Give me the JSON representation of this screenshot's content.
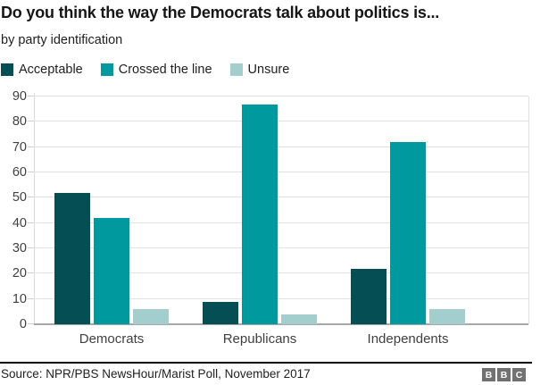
{
  "header": {
    "title": "Do you think the way the Democrats talk about politics is...",
    "subtitle": "by party identification"
  },
  "chart_data": {
    "type": "bar",
    "title": "Do you think the way the Democrats talk about politics is...",
    "subtitle": "by party identification",
    "categories": [
      "Democrats",
      "Republicans",
      "Independents"
    ],
    "series": [
      {
        "name": "Acceptable",
        "color": "#054e53",
        "values": [
          52,
          9,
          22
        ]
      },
      {
        "name": "Crossed the line",
        "color": "#00999e",
        "values": [
          42,
          87,
          72
        ]
      },
      {
        "name": "Unsure",
        "color": "#a4cecd",
        "values": [
          6,
          4,
          6
        ]
      }
    ],
    "ylim": [
      0,
      90
    ],
    "ytick_step": 10,
    "grid": true,
    "legend_position": "top",
    "xlabel": "",
    "ylabel": ""
  },
  "footer": {
    "source": "Source: NPR/PBS NewsHour/Marist Poll, November 2017",
    "logo_letters": [
      "B",
      "B",
      "C"
    ]
  },
  "colors": {
    "grid": "#e2e2e2",
    "axis_baseline": "#a8a8a8",
    "tick": "#cfcfcf",
    "text_primary": "#161616",
    "text_secondary": "#404040",
    "logo_bg": "#717171"
  }
}
